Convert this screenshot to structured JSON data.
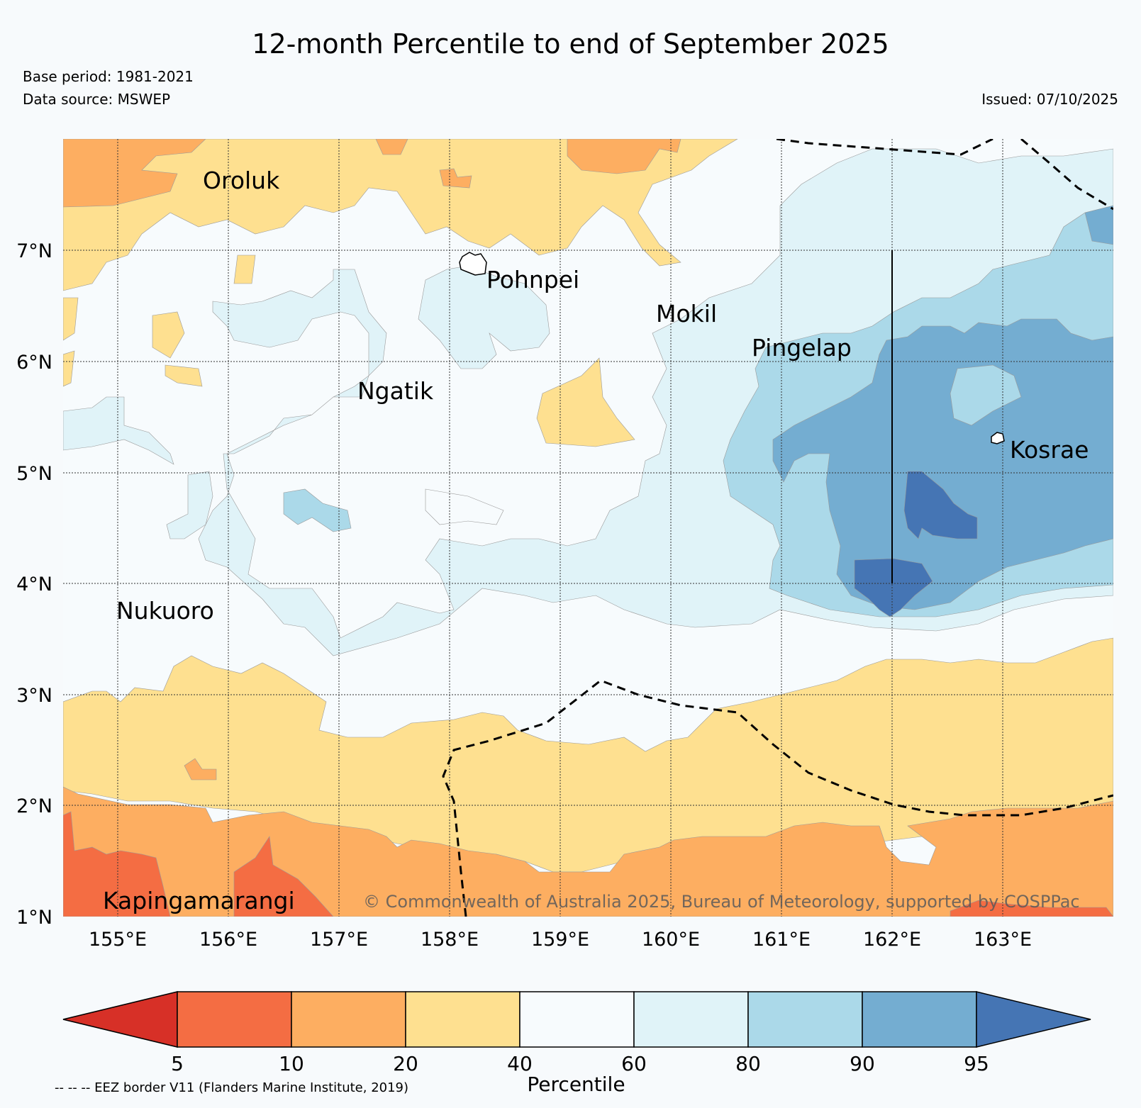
{
  "header": {
    "title": "12-month Percentile to end of September 2025",
    "base_period": "Base period: 1981-2021",
    "data_source": "Data source: MSWEP",
    "issued": "Issued: 07/10/2025"
  },
  "map": {
    "lat_ticks": [
      "7°N",
      "6°N",
      "5°N",
      "4°N",
      "3°N",
      "2°N",
      "1°N"
    ],
    "lon_ticks": [
      "155°E",
      "156°E",
      "157°E",
      "158°E",
      "159°E",
      "160°E",
      "161°E",
      "162°E",
      "163°E"
    ],
    "places": [
      {
        "name": "Oroluk"
      },
      {
        "name": "Pohnpei"
      },
      {
        "name": "Mokil"
      },
      {
        "name": "Pingelap"
      },
      {
        "name": "Ngatik"
      },
      {
        "name": "Kosrae"
      },
      {
        "name": "Nukuoro"
      },
      {
        "name": "Kapingamarangi"
      }
    ],
    "copyright": "© Commonwealth of Australia 2025, Bureau of Meteorology, supported by COSPPac"
  },
  "colorbar": {
    "label": "Percentile",
    "ticks": [
      "5",
      "10",
      "20",
      "40",
      "60",
      "80",
      "90",
      "95"
    ],
    "colors": {
      "below_5": "#d73027",
      "p5_10": "#f46d43",
      "p10_20": "#fdae61",
      "p20_40": "#fee090",
      "p40_60": "#f7fbfd",
      "p60_80": "#e0f3f8",
      "p80_90": "#abd9e9",
      "p90_95": "#74add1",
      "above_95": "#4575b4"
    }
  },
  "footnote": "-- -- -- EEZ border V11 (Flanders Marine Institute, 2019)"
}
